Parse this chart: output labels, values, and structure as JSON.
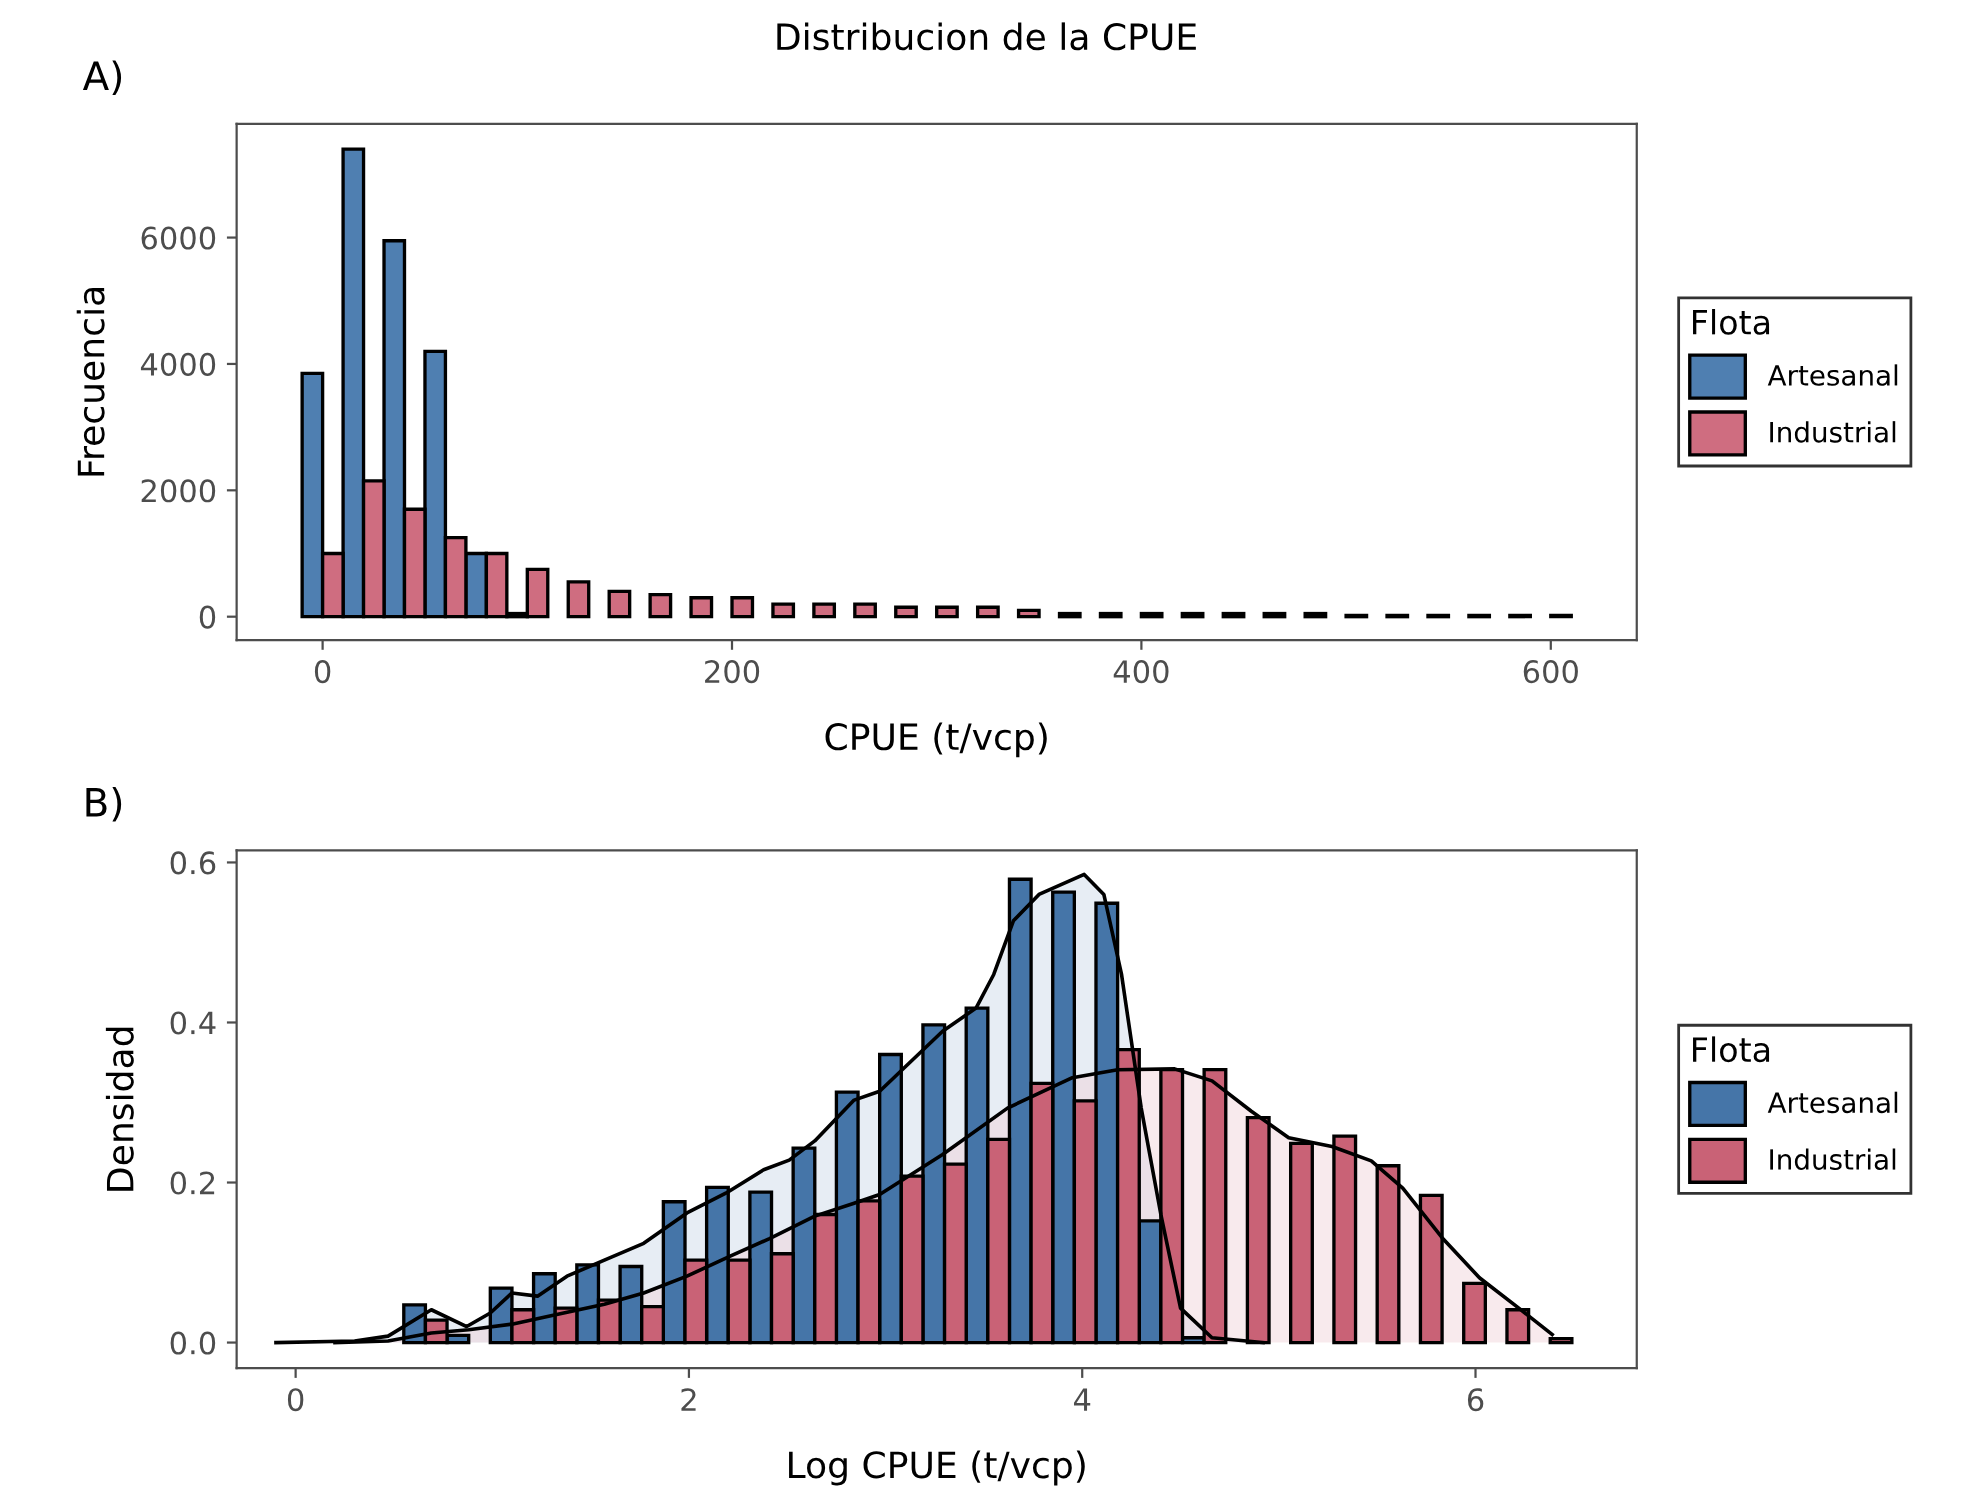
{
  "chart_data": [
    {
      "type": "bar",
      "title": "Distribucion de la CPUE",
      "xlabel": "CPUE (t/vcp)",
      "ylabel": "Frecuencia",
      "legend_title": "Flota",
      "legend": "right",
      "grid": false,
      "annotations": [
        "A)"
      ],
      "x": [
        0,
        20,
        40,
        60,
        80,
        100,
        120,
        140,
        160,
        180,
        200,
        220,
        240,
        260,
        280,
        300,
        320,
        340,
        360,
        380,
        400,
        420,
        440,
        460,
        480,
        500,
        520,
        540,
        560,
        580,
        600
      ],
      "xlim": [
        -42,
        642
      ],
      "ylim": [
        -370,
        7800
      ],
      "xticks": [
        0,
        200,
        400,
        600
      ],
      "yticks": [
        0,
        2000,
        4000,
        6000
      ],
      "series": [
        {
          "name": "Artesanal",
          "color": "#4f7fb1",
          "values": [
            3850,
            7400,
            5950,
            4200,
            1000,
            50,
            null,
            null,
            null,
            null,
            null,
            null,
            null,
            null,
            null,
            null,
            null,
            null,
            null,
            null,
            null,
            null,
            null,
            null,
            null,
            null,
            null,
            null,
            null,
            null,
            null
          ]
        },
        {
          "name": "Industrial",
          "color": "#cf6d80",
          "values": [
            1000,
            2150,
            1700,
            1250,
            1000,
            750,
            550,
            400,
            350,
            300,
            300,
            200,
            200,
            200,
            150,
            150,
            150,
            100,
            50,
            50,
            50,
            50,
            50,
            50,
            50,
            20,
            20,
            20,
            20,
            20,
            20
          ]
        }
      ]
    },
    {
      "type": "bar",
      "xlabel": "Log CPUE (t/vcp)",
      "ylabel": "Densidad",
      "legend_title": "Flota",
      "legend": "right",
      "grid": false,
      "annotations": [
        "B)"
      ],
      "x": [
        0.66,
        0.88,
        1.1,
        1.32,
        1.54,
        1.76,
        1.98,
        2.2,
        2.42,
        2.64,
        2.86,
        3.08,
        3.3,
        3.52,
        3.74,
        3.96,
        4.18,
        4.4,
        4.62,
        4.84,
        5.06,
        5.28,
        5.5,
        5.72,
        5.94,
        6.16,
        6.38
      ],
      "xlim": [
        -0.3,
        6.82
      ],
      "ylim": [
        -0.032,
        0.615
      ],
      "xticks": [
        0,
        2,
        4,
        6
      ],
      "yticks": [
        {
          "value": 0,
          "label": "0.0"
        },
        {
          "value": 0.2,
          "label": "0.2"
        },
        {
          "value": 0.4,
          "label": "0.4"
        },
        {
          "value": 0.6,
          "label": "0.6"
        }
      ],
      "series": [
        {
          "name": "Artesanal",
          "color": "#4575a8",
          "values": [
            0.047,
            0.009,
            0.068,
            0.086,
            0.097,
            0.095,
            0.176,
            0.194,
            0.188,
            0.243,
            0.313,
            0.36,
            0.397,
            0.418,
            0.579,
            0.563,
            0.549,
            0.152,
            0.006,
            null,
            null,
            null,
            null,
            null,
            null,
            null,
            null
          ]
        },
        {
          "name": "Industrial",
          "color": "#c96276",
          "values": [
            0.028,
            null,
            0.041,
            0.043,
            0.053,
            0.045,
            0.103,
            0.103,
            0.111,
            0.16,
            0.177,
            0.208,
            0.223,
            0.254,
            0.324,
            0.302,
            0.366,
            0.341,
            0.341,
            0.281,
            0.249,
            0.258,
            0.221,
            0.184,
            0.074,
            0.041,
            0.005
          ]
        },
        {
          "type": "area",
          "color": "#c9d8e6",
          "x": [
            -0.1,
            0.3,
            0.47,
            0.69,
            0.87,
            0.99,
            1.1,
            1.23,
            1.38,
            1.57,
            1.77,
            1.99,
            2.19,
            2.38,
            2.51,
            2.64,
            2.84,
            2.97,
            3.29,
            3.46,
            3.55,
            3.65,
            3.78,
            4.01,
            4.11,
            4.2,
            4.3,
            4.4,
            4.5,
            4.66,
            4.92
          ],
          "values": [
            0,
            0.002,
            0.008,
            0.041,
            0.02,
            0.037,
            0.062,
            0.058,
            0.083,
            0.103,
            0.124,
            0.162,
            0.187,
            0.216,
            0.228,
            0.252,
            0.303,
            0.314,
            0.389,
            0.418,
            0.46,
            0.527,
            0.56,
            0.585,
            0.56,
            0.46,
            0.293,
            0.16,
            0.043,
            0.006,
            0
          ]
        },
        {
          "type": "area",
          "color": "#f0d0d6",
          "x": [
            0.2,
            0.47,
            0.69,
            0.88,
            1.1,
            1.31,
            1.57,
            1.77,
            1.99,
            2.21,
            2.41,
            2.64,
            2.84,
            2.97,
            3.29,
            3.62,
            3.95,
            4.18,
            4.47,
            4.66,
            4.86,
            5.05,
            5.27,
            5.47,
            5.63,
            5.83,
            6.02,
            6.22,
            6.39
          ],
          "values": [
            0,
            0.002,
            0.012,
            0.016,
            0.023,
            0.034,
            0.048,
            0.062,
            0.083,
            0.108,
            0.13,
            0.158,
            0.174,
            0.185,
            0.235,
            0.293,
            0.331,
            0.341,
            0.342,
            0.327,
            0.289,
            0.256,
            0.245,
            0.227,
            0.193,
            0.131,
            0.081,
            0.043,
            0.01
          ]
        }
      ]
    }
  ]
}
